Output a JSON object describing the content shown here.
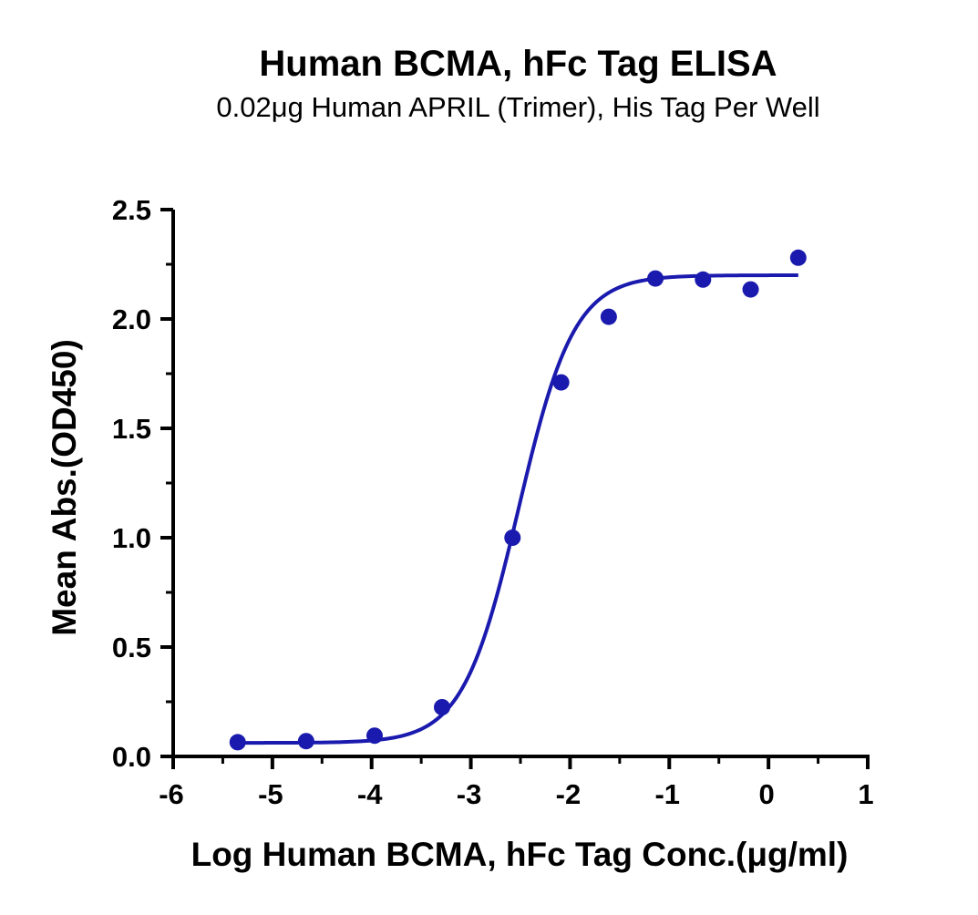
{
  "chart_data": {
    "type": "scatter",
    "title": "Human BCMA, hFc Tag ELISA",
    "subtitle": "0.02μg Human APRIL (Trimer), His Tag Per Well",
    "xlabel": "Log Human BCMA, hFc Tag Conc.(μg/ml)",
    "ylabel": "Mean Abs.(OD450)",
    "xlim": [
      -6,
      1
    ],
    "ylim": [
      0,
      2.5
    ],
    "x_ticks": [
      "-6",
      "-5",
      "-4",
      "-3",
      "-2",
      "-1",
      "0",
      "1"
    ],
    "y_ticks": [
      "0.0",
      "0.5",
      "1.0",
      "1.5",
      "2.0",
      "2.5"
    ],
    "grid": false,
    "series": [
      {
        "x": [
          -5.35,
          -4.66,
          -3.97,
          -3.29,
          -2.58,
          -2.09,
          -1.61,
          -1.14,
          -0.66,
          -0.18,
          0.3
        ],
        "y": [
          0.065,
          0.07,
          0.095,
          0.225,
          1.0,
          1.71,
          2.01,
          2.185,
          2.18,
          2.135,
          2.28
        ],
        "color": "#1a1aae",
        "fit": "4PL",
        "fit_params": {
          "bottom": 0.062,
          "top": 2.2,
          "logEC50": -2.52,
          "hill": 1.55
        }
      }
    ]
  }
}
